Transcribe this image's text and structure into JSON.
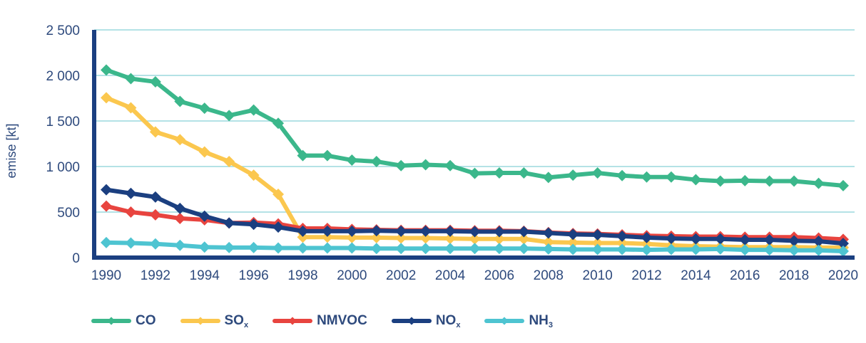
{
  "chart_data": {
    "type": "line",
    "title": "",
    "xlabel": "",
    "ylabel": "emise [kt]",
    "ylim": [
      0,
      2500
    ],
    "yticks": [
      0,
      500,
      1000,
      1500,
      2000,
      2500
    ],
    "ytick_labels": [
      "0",
      "500",
      "1 000",
      "1 500",
      "2 000",
      "2 500"
    ],
    "xlim": [
      1990,
      2020
    ],
    "xtick_labels": [
      "1990",
      "1992",
      "1994",
      "1996",
      "1998",
      "2000",
      "2002",
      "2004",
      "2006",
      "2008",
      "2010",
      "2012",
      "2014",
      "2016",
      "2018",
      "2020"
    ],
    "grid": "horizontal",
    "legend_position": "bottom-left",
    "x": [
      1990,
      1991,
      1992,
      1993,
      1994,
      1995,
      1996,
      1997,
      1998,
      1999,
      2000,
      2001,
      2002,
      2003,
      2004,
      2005,
      2006,
      2007,
      2008,
      2009,
      2010,
      2011,
      2012,
      2013,
      2014,
      2015,
      2016,
      2017,
      2018,
      2019,
      2020
    ],
    "series": [
      {
        "name": "CO",
        "label_main": "CO",
        "label_sub": "",
        "color": "#3BB78B",
        "values": [
          2060,
          1965,
          1930,
          1715,
          1640,
          1560,
          1620,
          1475,
          1120,
          1120,
          1070,
          1055,
          1010,
          1020,
          1010,
          925,
          930,
          930,
          880,
          905,
          930,
          900,
          885,
          885,
          855,
          840,
          845,
          840,
          840,
          815,
          790
        ]
      },
      {
        "name": "SOx",
        "label_main": "SO",
        "label_sub": "x",
        "color": "#FBC74E",
        "values": [
          1755,
          1645,
          1380,
          1295,
          1160,
          1055,
          905,
          695,
          225,
          225,
          220,
          220,
          215,
          215,
          210,
          205,
          205,
          205,
          170,
          165,
          160,
          160,
          150,
          135,
          125,
          120,
          115,
          115,
          115,
          110,
          110
        ]
      },
      {
        "name": "NMVOC",
        "label_main": "NMVOC",
        "label_sub": "",
        "color": "#E8443F",
        "values": [
          565,
          500,
          470,
          430,
          415,
          380,
          385,
          370,
          320,
          320,
          310,
          305,
          300,
          300,
          300,
          295,
          295,
          290,
          275,
          265,
          260,
          250,
          240,
          235,
          230,
          230,
          225,
          225,
          225,
          215,
          200
        ]
      },
      {
        "name": "NOx",
        "label_main": "NO",
        "label_sub": "x",
        "color": "#1B3F80",
        "values": [
          745,
          705,
          665,
          540,
          455,
          380,
          365,
          335,
          290,
          290,
          290,
          295,
          290,
          290,
          290,
          285,
          285,
          285,
          270,
          255,
          250,
          235,
          220,
          210,
          205,
          205,
          195,
          195,
          185,
          180,
          155
        ]
      },
      {
        "name": "NH3",
        "label_main": "NH",
        "label_sub": "3",
        "color": "#4EC4D1",
        "values": [
          165,
          160,
          150,
          135,
          115,
          110,
          110,
          105,
          105,
          105,
          105,
          100,
          100,
          100,
          100,
          100,
          100,
          100,
          95,
          90,
          90,
          90,
          85,
          90,
          90,
          95,
          85,
          85,
          80,
          80,
          70
        ]
      }
    ]
  },
  "style": {
    "axis_color": "#1B3F80",
    "grid_color": "#9BD9DE",
    "text_color": "#2E4A7D"
  }
}
